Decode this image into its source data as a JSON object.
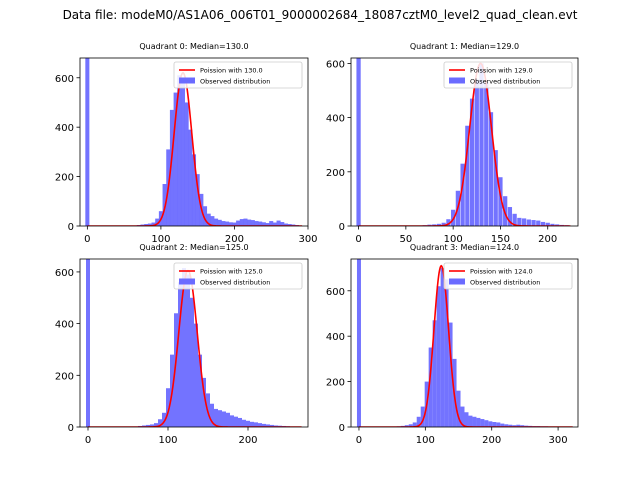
{
  "figure": {
    "title": "Data file: modeM0/AS1A06_006T01_9000002684_18087cztM0_level2_quad_clean.evt"
  },
  "colors": {
    "hist": "#6b6bff",
    "fit": "#ff0000",
    "axis": "#000000",
    "background": "#ffffff"
  },
  "chart_data": [
    {
      "type": "bar",
      "title": "Quadrant 0: Median=130.0",
      "median": 130.0,
      "xlim": [
        -10,
        300
      ],
      "ylim": [
        0,
        680
      ],
      "xticks": [
        0,
        100,
        200,
        300
      ],
      "yticks": [
        0,
        200,
        400,
        600
      ],
      "bin_width": 5.5,
      "legend": {
        "position": "top-right",
        "entries": [
          "Poission with 130.0",
          "Observed distribution"
        ]
      },
      "fit": {
        "label": "Poission with 130.0",
        "mu": 130,
        "sigma": 12,
        "peak": 620
      },
      "histogram": {
        "label": "Observed distribution",
        "bins": [
          {
            "x": 0,
            "y": 680
          },
          {
            "x": 70,
            "y": 4
          },
          {
            "x": 75,
            "y": 6
          },
          {
            "x": 80,
            "y": 8
          },
          {
            "x": 85,
            "y": 10
          },
          {
            "x": 90,
            "y": 14
          },
          {
            "x": 95,
            "y": 30
          },
          {
            "x": 100,
            "y": 60
          },
          {
            "x": 105,
            "y": 170
          },
          {
            "x": 110,
            "y": 310
          },
          {
            "x": 115,
            "y": 470
          },
          {
            "x": 120,
            "y": 540
          },
          {
            "x": 125,
            "y": 610
          },
          {
            "x": 130,
            "y": 600
          },
          {
            "x": 135,
            "y": 500
          },
          {
            "x": 140,
            "y": 390
          },
          {
            "x": 145,
            "y": 290
          },
          {
            "x": 150,
            "y": 210
          },
          {
            "x": 155,
            "y": 130
          },
          {
            "x": 160,
            "y": 80
          },
          {
            "x": 165,
            "y": 50
          },
          {
            "x": 170,
            "y": 40
          },
          {
            "x": 175,
            "y": 30
          },
          {
            "x": 180,
            "y": 25
          },
          {
            "x": 185,
            "y": 20
          },
          {
            "x": 190,
            "y": 18
          },
          {
            "x": 195,
            "y": 15
          },
          {
            "x": 200,
            "y": 14
          },
          {
            "x": 205,
            "y": 22
          },
          {
            "x": 210,
            "y": 28
          },
          {
            "x": 215,
            "y": 30
          },
          {
            "x": 220,
            "y": 26
          },
          {
            "x": 225,
            "y": 24
          },
          {
            "x": 230,
            "y": 20
          },
          {
            "x": 235,
            "y": 18
          },
          {
            "x": 240,
            "y": 15
          },
          {
            "x": 245,
            "y": 12
          },
          {
            "x": 250,
            "y": 20
          },
          {
            "x": 255,
            "y": 14
          },
          {
            "x": 260,
            "y": 22
          },
          {
            "x": 265,
            "y": 16
          },
          {
            "x": 270,
            "y": 10
          },
          {
            "x": 275,
            "y": 8
          },
          {
            "x": 280,
            "y": 6
          },
          {
            "x": 285,
            "y": 4
          }
        ]
      }
    },
    {
      "type": "bar",
      "title": "Quadrant 1: Median=129.0",
      "median": 129.0,
      "xlim": [
        -8,
        232
      ],
      "ylim": [
        0,
        620
      ],
      "xticks": [
        0,
        50,
        100,
        150,
        200
      ],
      "yticks": [
        0,
        200,
        400,
        600
      ],
      "bin_width": 4.5,
      "legend": {
        "position": "top-right",
        "entries": [
          "Poission with 129.0",
          "Observed distribution"
        ]
      },
      "fit": {
        "label": "Poission with 129.0",
        "mu": 129,
        "sigma": 11.5,
        "peak": 600
      },
      "histogram": {
        "label": "Observed distribution",
        "bins": [
          {
            "x": 0,
            "y": 620
          },
          {
            "x": 70,
            "y": 3
          },
          {
            "x": 75,
            "y": 5
          },
          {
            "x": 80,
            "y": 6
          },
          {
            "x": 85,
            "y": 8
          },
          {
            "x": 90,
            "y": 12
          },
          {
            "x": 95,
            "y": 25
          },
          {
            "x": 100,
            "y": 60
          },
          {
            "x": 105,
            "y": 130
          },
          {
            "x": 110,
            "y": 230
          },
          {
            "x": 115,
            "y": 370
          },
          {
            "x": 120,
            "y": 470
          },
          {
            "x": 125,
            "y": 540
          },
          {
            "x": 130,
            "y": 600
          },
          {
            "x": 135,
            "y": 530
          },
          {
            "x": 140,
            "y": 420
          },
          {
            "x": 145,
            "y": 280
          },
          {
            "x": 150,
            "y": 180
          },
          {
            "x": 155,
            "y": 110
          },
          {
            "x": 160,
            "y": 70
          },
          {
            "x": 165,
            "y": 45
          },
          {
            "x": 170,
            "y": 30
          },
          {
            "x": 175,
            "y": 28
          },
          {
            "x": 180,
            "y": 24
          },
          {
            "x": 185,
            "y": 22
          },
          {
            "x": 190,
            "y": 20
          },
          {
            "x": 195,
            "y": 15
          },
          {
            "x": 200,
            "y": 12
          },
          {
            "x": 205,
            "y": 8
          },
          {
            "x": 210,
            "y": 6
          },
          {
            "x": 215,
            "y": 4
          },
          {
            "x": 220,
            "y": 3
          }
        ]
      }
    },
    {
      "type": "bar",
      "title": "Quadrant 2: Median=125.0",
      "median": 125.0,
      "xlim": [
        -10,
        275
      ],
      "ylim": [
        0,
        650
      ],
      "xticks": [
        0,
        100,
        200
      ],
      "yticks": [
        0,
        200,
        400,
        600
      ],
      "bin_width": 5,
      "legend": {
        "position": "top-right",
        "entries": [
          "Poission with 125.0",
          "Observed distribution"
        ]
      },
      "fit": {
        "label": "Poission with 125.0",
        "mu": 125,
        "sigma": 11.5,
        "peak": 605
      },
      "histogram": {
        "label": "Observed distribution",
        "bins": [
          {
            "x": 0,
            "y": 650
          },
          {
            "x": 65,
            "y": 4
          },
          {
            "x": 70,
            "y": 6
          },
          {
            "x": 75,
            "y": 8
          },
          {
            "x": 80,
            "y": 10
          },
          {
            "x": 85,
            "y": 15
          },
          {
            "x": 90,
            "y": 30
          },
          {
            "x": 95,
            "y": 55
          },
          {
            "x": 100,
            "y": 150
          },
          {
            "x": 105,
            "y": 280
          },
          {
            "x": 110,
            "y": 440
          },
          {
            "x": 115,
            "y": 560
          },
          {
            "x": 120,
            "y": 615
          },
          {
            "x": 125,
            "y": 590
          },
          {
            "x": 130,
            "y": 500
          },
          {
            "x": 135,
            "y": 400
          },
          {
            "x": 140,
            "y": 280
          },
          {
            "x": 145,
            "y": 190
          },
          {
            "x": 150,
            "y": 130
          },
          {
            "x": 155,
            "y": 90
          },
          {
            "x": 160,
            "y": 70
          },
          {
            "x": 165,
            "y": 65
          },
          {
            "x": 170,
            "y": 60
          },
          {
            "x": 175,
            "y": 55
          },
          {
            "x": 180,
            "y": 45
          },
          {
            "x": 185,
            "y": 40
          },
          {
            "x": 190,
            "y": 35
          },
          {
            "x": 195,
            "y": 28
          },
          {
            "x": 200,
            "y": 24
          },
          {
            "x": 205,
            "y": 20
          },
          {
            "x": 210,
            "y": 18
          },
          {
            "x": 215,
            "y": 15
          },
          {
            "x": 220,
            "y": 12
          },
          {
            "x": 225,
            "y": 10
          },
          {
            "x": 230,
            "y": 8
          },
          {
            "x": 235,
            "y": 6
          },
          {
            "x": 240,
            "y": 5
          },
          {
            "x": 245,
            "y": 4
          },
          {
            "x": 250,
            "y": 3
          }
        ]
      }
    },
    {
      "type": "bar",
      "title": "Quadrant 3: Median=124.0",
      "median": 124.0,
      "xlim": [
        -12,
        330
      ],
      "ylim": [
        0,
        740
      ],
      "xticks": [
        0,
        100,
        200,
        300
      ],
      "yticks": [
        0,
        200,
        400,
        600
      ],
      "bin_width": 6,
      "legend": {
        "position": "top-right",
        "entries": [
          "Poission with 124.0",
          "Observed distribution"
        ]
      },
      "fit": {
        "label": "Poission with 124.0",
        "mu": 124,
        "sigma": 11,
        "peak": 710
      },
      "histogram": {
        "label": "Observed distribution",
        "bins": [
          {
            "x": 0,
            "y": 740
          },
          {
            "x": 60,
            "y": 3
          },
          {
            "x": 66,
            "y": 5
          },
          {
            "x": 72,
            "y": 8
          },
          {
            "x": 78,
            "y": 12
          },
          {
            "x": 84,
            "y": 20
          },
          {
            "x": 90,
            "y": 45
          },
          {
            "x": 96,
            "y": 90
          },
          {
            "x": 102,
            "y": 200
          },
          {
            "x": 108,
            "y": 350
          },
          {
            "x": 114,
            "y": 470
          },
          {
            "x": 120,
            "y": 620
          },
          {
            "x": 126,
            "y": 700
          },
          {
            "x": 132,
            "y": 650
          },
          {
            "x": 138,
            "y": 460
          },
          {
            "x": 144,
            "y": 300
          },
          {
            "x": 150,
            "y": 160
          },
          {
            "x": 156,
            "y": 90
          },
          {
            "x": 162,
            "y": 65
          },
          {
            "x": 168,
            "y": 50
          },
          {
            "x": 174,
            "y": 45
          },
          {
            "x": 180,
            "y": 40
          },
          {
            "x": 186,
            "y": 35
          },
          {
            "x": 192,
            "y": 30
          },
          {
            "x": 198,
            "y": 25
          },
          {
            "x": 204,
            "y": 22
          },
          {
            "x": 210,
            "y": 20
          },
          {
            "x": 216,
            "y": 15
          },
          {
            "x": 222,
            "y": 12
          },
          {
            "x": 228,
            "y": 10
          },
          {
            "x": 234,
            "y": 8
          },
          {
            "x": 240,
            "y": 10
          },
          {
            "x": 246,
            "y": 8
          },
          {
            "x": 252,
            "y": 6
          },
          {
            "x": 258,
            "y": 5
          },
          {
            "x": 264,
            "y": 4
          },
          {
            "x": 270,
            "y": 4
          },
          {
            "x": 276,
            "y": 3
          },
          {
            "x": 282,
            "y": 3
          },
          {
            "x": 288,
            "y": 2
          },
          {
            "x": 294,
            "y": 2
          }
        ]
      }
    }
  ]
}
